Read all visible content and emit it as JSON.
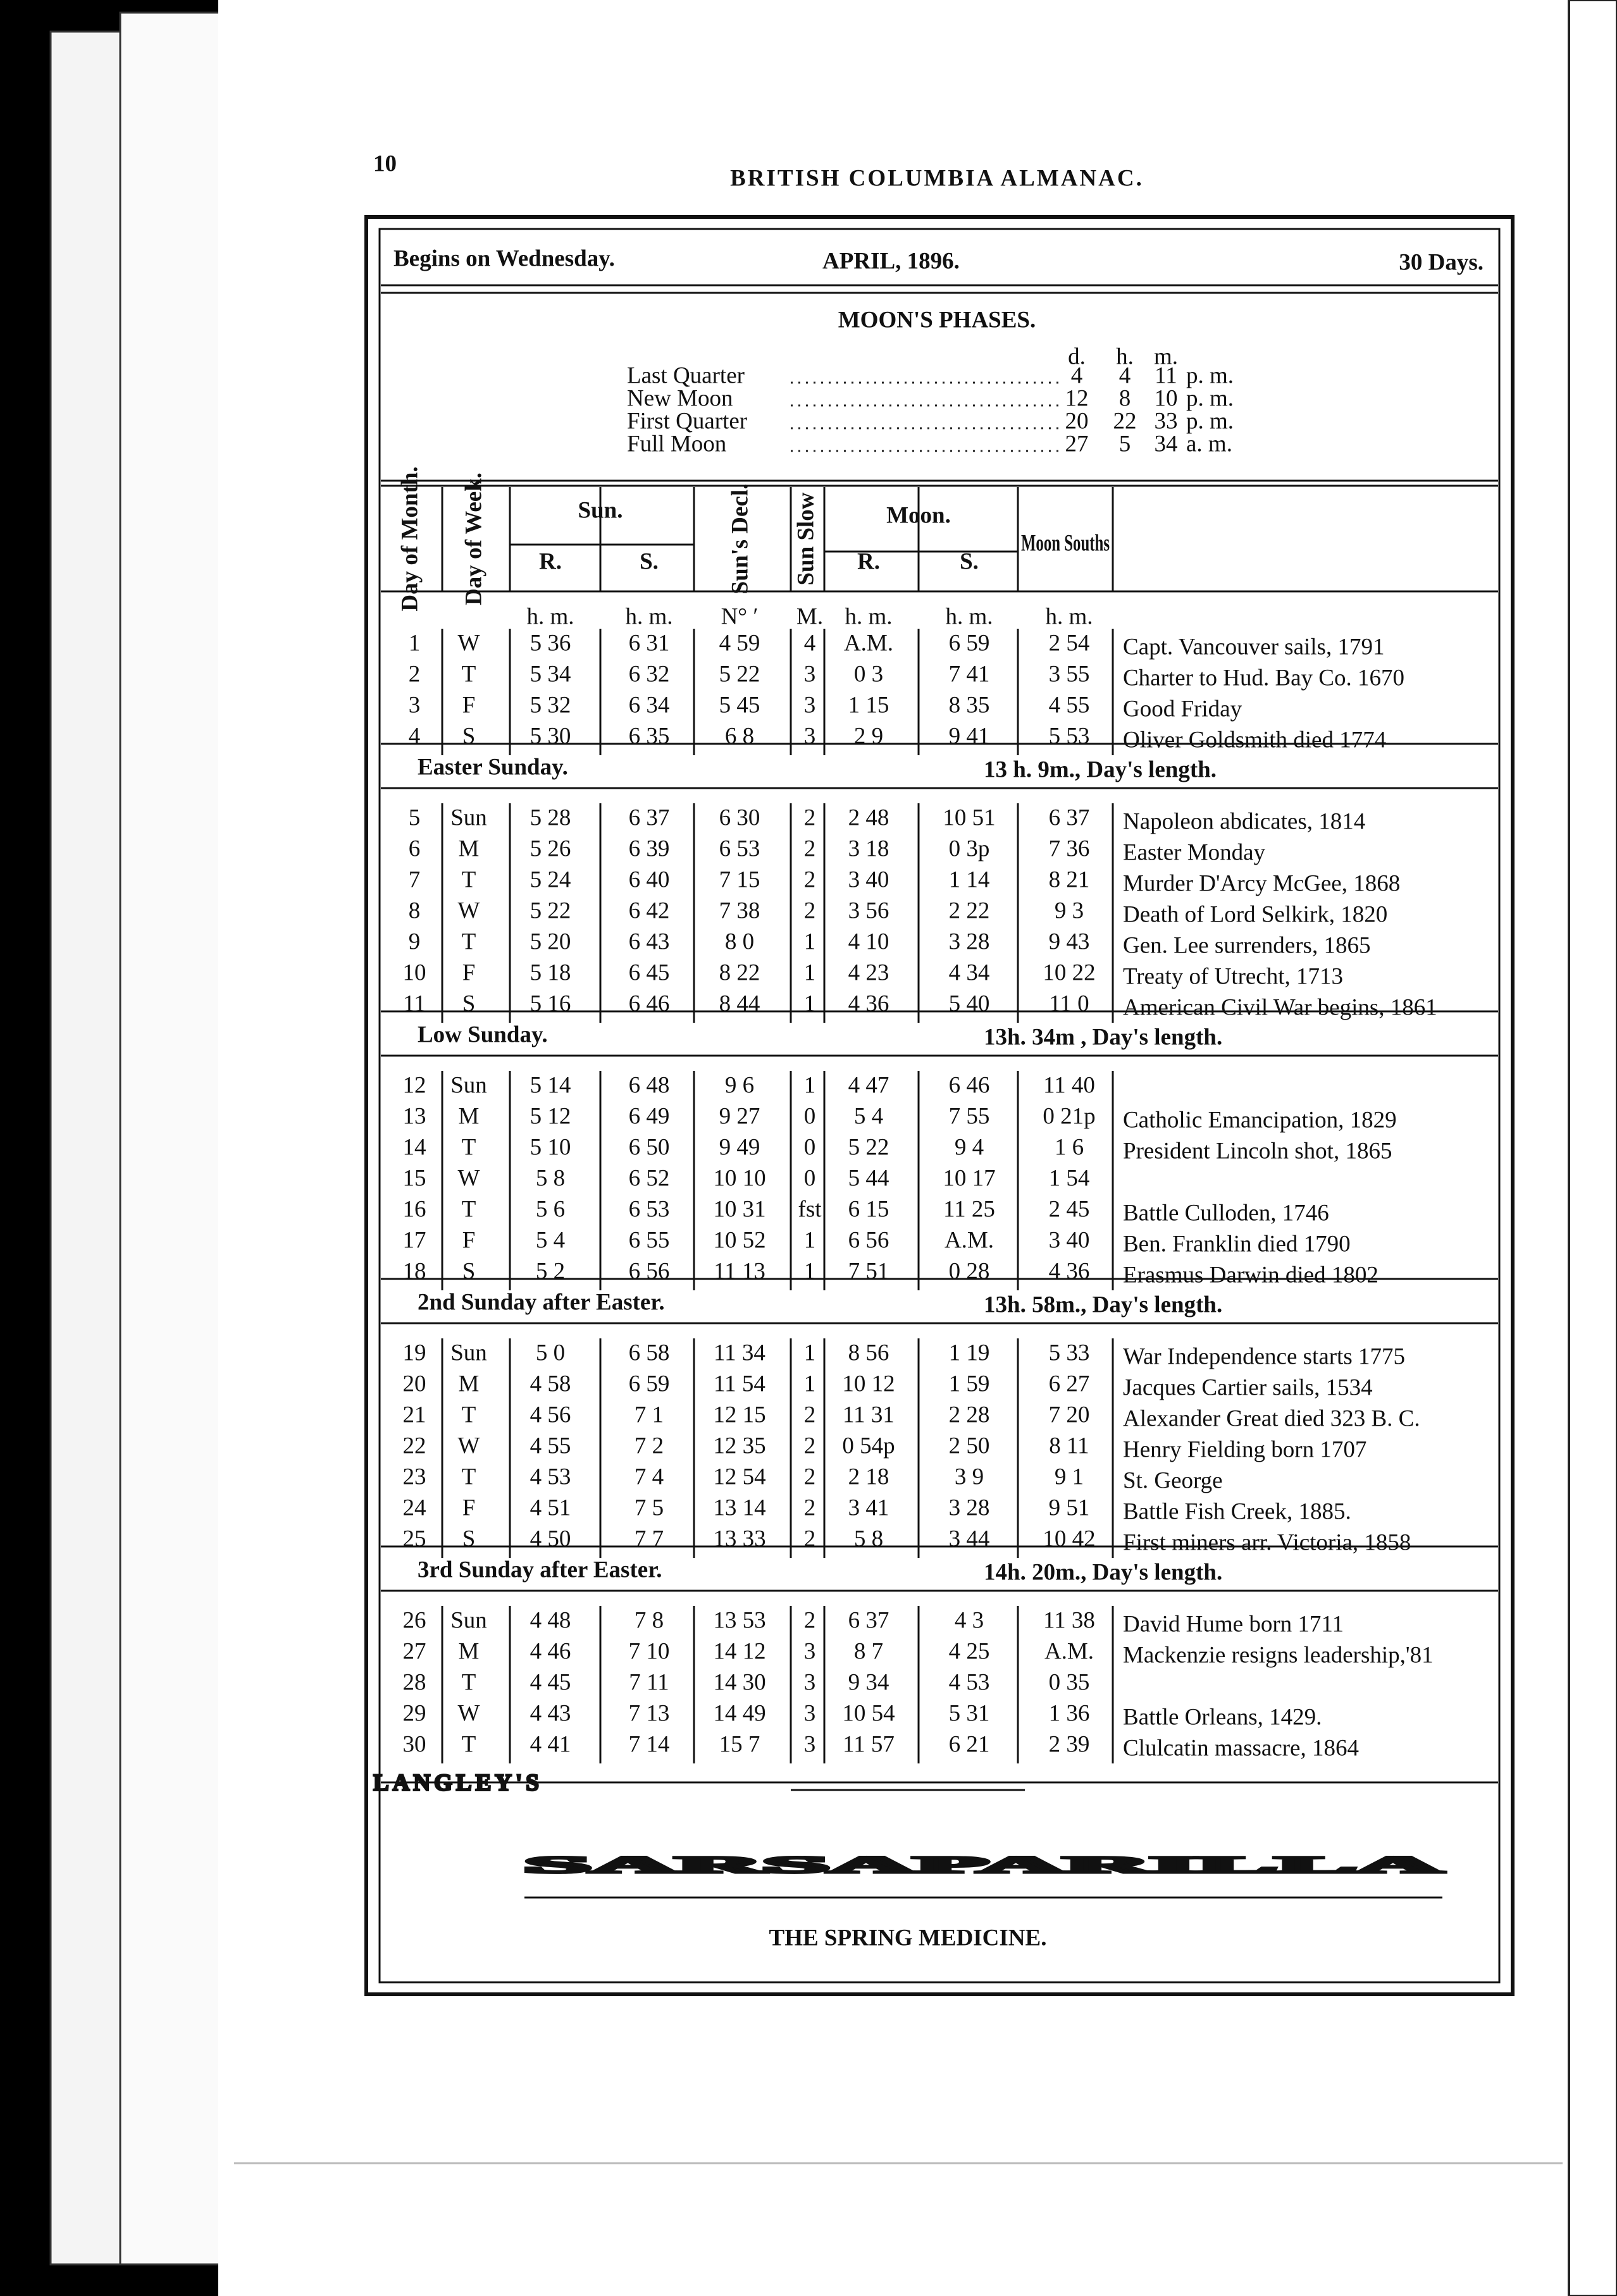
{
  "page_number": "10",
  "running_head": "BRITISH COLUMBIA ALMANAC.",
  "calendar": {
    "begins": "Begins on Wednesday.",
    "month": "APRIL, 1896.",
    "days": "30 Days.",
    "moon_phases": {
      "title": "MOON'S PHASES.",
      "columns": [
        "d.",
        "h.",
        "m."
      ],
      "rows": [
        {
          "name": "Last Quarter",
          "d": "4",
          "h": "4",
          "m": "11",
          "period": "p. m."
        },
        {
          "name": "New Moon",
          "d": "12",
          "h": "8",
          "m": "10",
          "period": "p. m."
        },
        {
          "name": "First Quarter",
          "d": "20",
          "h": "22",
          "m": "33",
          "period": "p. m."
        },
        {
          "name": "Full Moon",
          "d": "27",
          "h": "5",
          "m": "34",
          "period": "a. m."
        }
      ]
    },
    "columns": {
      "day_of_month": "Day of Month.",
      "day_of_week": "Day of Week.",
      "sun": "Sun.",
      "sun_rise": "R.",
      "sun_set": "S.",
      "sun_decl": "Sun's Decl.",
      "sun_slow": "Sun Slow",
      "moon": "Moon.",
      "moon_rise": "R.",
      "moon_set": "S.",
      "moon_souths": "Moon Souths"
    },
    "units": [
      "h. m.",
      "h. m.",
      "N° ′",
      "M.",
      "h. m.",
      "h. m.",
      "h. m."
    ],
    "groups": [
      {
        "rows": [
          {
            "cells": [
              "1",
              "W",
              "5 36",
              "6 31",
              "4 59",
              "4",
              "A.M.",
              "6 59",
              "2 54"
            ],
            "event": "Capt. Vancouver sails, 1791"
          },
          {
            "cells": [
              "2",
              "T",
              "5 34",
              "6 32",
              "5 22",
              "3",
              "0 3",
              "7 41",
              "3 55"
            ],
            "event": "Charter to Hud. Bay Co. 1670"
          },
          {
            "cells": [
              "3",
              "F",
              "5 32",
              "6 34",
              "5 45",
              "3",
              "1 15",
              "8 35",
              "4 55"
            ],
            "event": "Good Friday"
          },
          {
            "cells": [
              "4",
              "S",
              "5 30",
              "6 35",
              "6 8",
              "3",
              "2 9",
              "9 41",
              "5 53"
            ],
            "event": "Oliver Goldsmith died 1774"
          }
        ]
      },
      {
        "heading": "Easter Sunday.",
        "day_length": "13 h. 9m., Day's length.",
        "rows": [
          {
            "cells": [
              "5",
              "Sun",
              "5 28",
              "6 37",
              "6 30",
              "2",
              "2 48",
              "10 51",
              "6 37"
            ],
            "event": "Napoleon abdicates, 1814"
          },
          {
            "cells": [
              "6",
              "M",
              "5 26",
              "6 39",
              "6 53",
              "2",
              "3 18",
              "0 3p",
              "7 36"
            ],
            "event": "Easter Monday"
          },
          {
            "cells": [
              "7",
              "T",
              "5 24",
              "6 40",
              "7 15",
              "2",
              "3 40",
              "1 14",
              "8 21"
            ],
            "event": "Murder D'Arcy McGee, 1868"
          },
          {
            "cells": [
              "8",
              "W",
              "5 22",
              "6 42",
              "7 38",
              "2",
              "3 56",
              "2 22",
              "9 3"
            ],
            "event": "Death of Lord Selkirk, 1820"
          },
          {
            "cells": [
              "9",
              "T",
              "5 20",
              "6 43",
              "8 0",
              "1",
              "4 10",
              "3 28",
              "9 43"
            ],
            "event": "Gen. Lee surrenders, 1865"
          },
          {
            "cells": [
              "10",
              "F",
              "5 18",
              "6 45",
              "8 22",
              "1",
              "4 23",
              "4 34",
              "10 22"
            ],
            "event": "Treaty of Utrecht, 1713"
          },
          {
            "cells": [
              "11",
              "S",
              "5 16",
              "6 46",
              "8 44",
              "1",
              "4 36",
              "5 40",
              "11 0"
            ],
            "event": "American Civil War begins, 1861"
          }
        ]
      },
      {
        "heading": "Low Sunday.",
        "day_length": "13h. 34m , Day's length.",
        "rows": [
          {
            "cells": [
              "12",
              "Sun",
              "5 14",
              "6 48",
              "9 6",
              "1",
              "4 47",
              "6 46",
              "11 40"
            ]
          },
          {
            "cells": [
              "13",
              "M",
              "5 12",
              "6 49",
              "9 27",
              "0",
              "5 4",
              "7 55",
              "0 21p"
            ],
            "event": "Catholic Emancipation, 1829"
          },
          {
            "cells": [
              "14",
              "T",
              "5 10",
              "6 50",
              "9 49",
              "0",
              "5 22",
              "9 4",
              "1 6"
            ],
            "event": "President Lincoln shot, 1865"
          },
          {
            "cells": [
              "15",
              "W",
              "5 8",
              "6 52",
              "10 10",
              "0",
              "5 44",
              "10 17",
              "1 54"
            ]
          },
          {
            "cells": [
              "16",
              "T",
              "5 6",
              "6 53",
              "10 31",
              "fst",
              "6 15",
              "11 25",
              "2 45"
            ],
            "event": "Battle Culloden, 1746"
          },
          {
            "cells": [
              "17",
              "F",
              "5 4",
              "6 55",
              "10 52",
              "1",
              "6 56",
              "A.M.",
              "3 40"
            ],
            "event": "Ben. Franklin died 1790"
          },
          {
            "cells": [
              "18",
              "S",
              "5 2",
              "6 56",
              "11 13",
              "1",
              "7 51",
              "0 28",
              "4 36"
            ],
            "event": "Erasmus Darwin died 1802"
          }
        ]
      },
      {
        "heading": "2nd Sunday after Easter.",
        "day_length": "13h. 58m., Day's length.",
        "rows": [
          {
            "cells": [
              "19",
              "Sun",
              "5 0",
              "6 58",
              "11 34",
              "1",
              "8 56",
              "1 19",
              "5 33"
            ],
            "event": "War Independence starts 1775"
          },
          {
            "cells": [
              "20",
              "M",
              "4 58",
              "6 59",
              "11 54",
              "1",
              "10 12",
              "1 59",
              "6 27"
            ],
            "event": "Jacques Cartier sails, 1534"
          },
          {
            "cells": [
              "21",
              "T",
              "4 56",
              "7 1",
              "12 15",
              "2",
              "11 31",
              "2 28",
              "7 20"
            ],
            "event": "Alexander Great died 323 B. C."
          },
          {
            "cells": [
              "22",
              "W",
              "4 55",
              "7 2",
              "12 35",
              "2",
              "0 54p",
              "2 50",
              "8 11"
            ],
            "event": "Henry Fielding born 1707"
          },
          {
            "cells": [
              "23",
              "T",
              "4 53",
              "7 4",
              "12 54",
              "2",
              "2 18",
              "3 9",
              "9 1"
            ],
            "event": "St. George"
          },
          {
            "cells": [
              "24",
              "F",
              "4 51",
              "7 5",
              "13 14",
              "2",
              "3 41",
              "3 28",
              "9 51"
            ],
            "event": "Battle Fish Creek, 1885."
          },
          {
            "cells": [
              "25",
              "S",
              "4 50",
              "7 7",
              "13 33",
              "2",
              "5 8",
              "3 44",
              "10 42"
            ],
            "event": "First miners arr. Victoria, 1858"
          }
        ]
      },
      {
        "heading": "3rd Sunday after Easter.",
        "day_length": "14h. 20m., Day's length.",
        "rows": [
          {
            "cells": [
              "26",
              "Sun",
              "4 48",
              "7 8",
              "13 53",
              "2",
              "6 37",
              "4 3",
              "11 38"
            ],
            "event": "David Hume born 1711"
          },
          {
            "cells": [
              "27",
              "M",
              "4 46",
              "7 10",
              "14 12",
              "3",
              "8 7",
              "4 25",
              "A.M."
            ],
            "event": "Mackenzie resigns leadership,'81"
          },
          {
            "cells": [
              "28",
              "T",
              "4 45",
              "7 11",
              "14 30",
              "3",
              "9 34",
              "4 53",
              "0 35"
            ]
          },
          {
            "cells": [
              "29",
              "W",
              "4 43",
              "7 13",
              "14 49",
              "3",
              "10 54",
              "5 31",
              "1 36"
            ],
            "event": "Battle Orleans, 1429."
          },
          {
            "cells": [
              "30",
              "T",
              "4 41",
              "7 14",
              "15 7",
              "3",
              "11 57",
              "6 21",
              "2 39"
            ],
            "event": "Clulcatin massacre, 1864"
          }
        ]
      }
    ]
  },
  "advertisement": {
    "brand": "LANGLEY'S",
    "product": "SARSAPARILLA",
    "tagline": "THE SPRING MEDICINE."
  }
}
